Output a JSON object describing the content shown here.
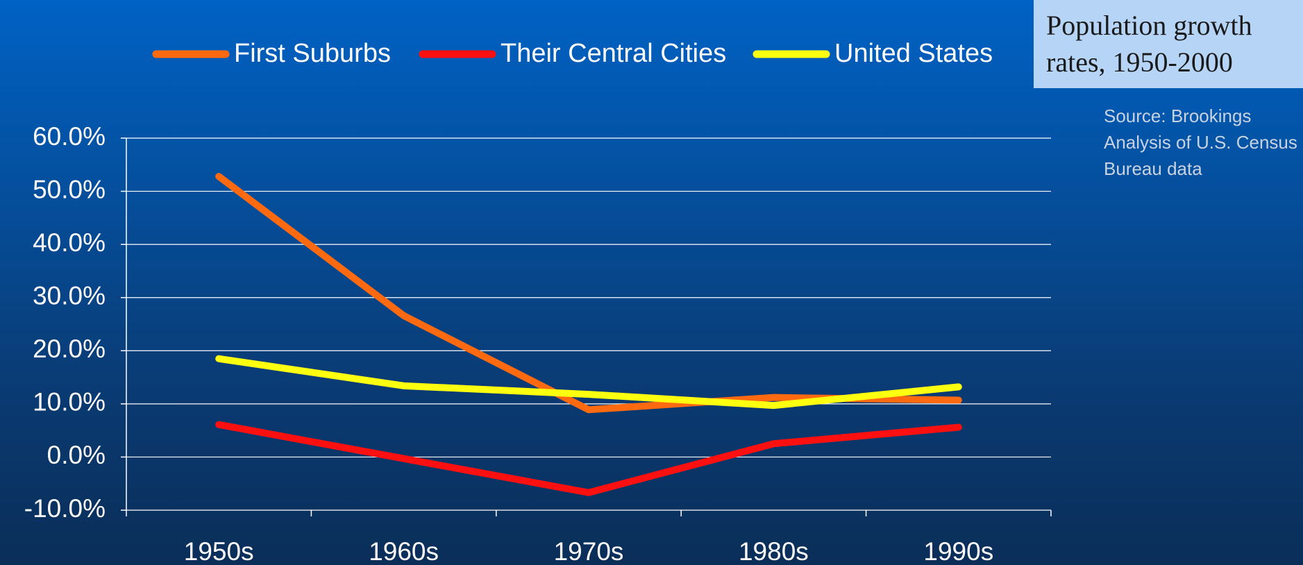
{
  "chart_data": {
    "type": "line",
    "title": "Population growth rates, 1950-2000",
    "annotation": "Source: Brookings Analysis of U.S. Census Bureau data",
    "categories": [
      "1950s",
      "1960s",
      "1970s",
      "1980s",
      "1990s"
    ],
    "series": [
      {
        "name": "First Suburbs",
        "color": "#ff6a10",
        "values": [
          52.8,
          26.6,
          8.9,
          11.2,
          10.7
        ]
      },
      {
        "name": "Their Central Cities",
        "color": "#ff1010",
        "values": [
          6.1,
          -0.3,
          -6.7,
          2.5,
          5.6
        ]
      },
      {
        "name": "United States",
        "color": "#ffff10",
        "values": [
          18.5,
          13.4,
          11.8,
          9.7,
          13.2
        ]
      }
    ],
    "ylim": [
      -10,
      60
    ],
    "yticks": [
      {
        "value": -10,
        "label": "-10.0%"
      },
      {
        "value": 0,
        "label": "0.0%"
      },
      {
        "value": 10,
        "label": "10.0%"
      },
      {
        "value": 20,
        "label": "20.0%"
      },
      {
        "value": 30,
        "label": "30.0%"
      },
      {
        "value": 40,
        "label": "40.0%"
      },
      {
        "value": 50,
        "label": "50.0%"
      },
      {
        "value": 60,
        "label": "60.0%"
      }
    ],
    "grid": true,
    "legend": "top"
  }
}
